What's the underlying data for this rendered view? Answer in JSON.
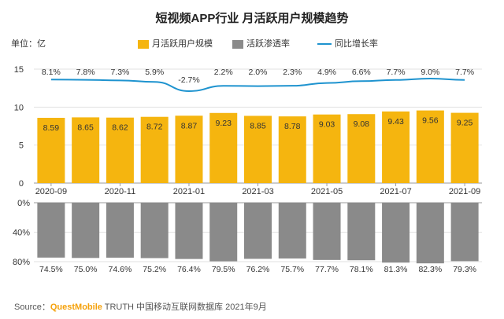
{
  "title": "短视频APP行业 月活跃用户规模趋势",
  "unit_label": "单位：亿",
  "legend": {
    "mau": "月活跃用户规模",
    "penetration": "活跃渗透率",
    "yoy": "同比增长率"
  },
  "colors": {
    "bar": "#f5b50f",
    "gray": "#8a8a8a",
    "line": "#1e93cf"
  },
  "source": {
    "prefix": "Source：",
    "brand": "QuestMobile",
    "rest": " TRUTH 中国移动互联网数据库 2021年9月"
  },
  "chart_data": [
    {
      "type": "bar",
      "title": "短视频APP行业 月活跃用户规模趋势",
      "categories": [
        "2020-09",
        "2020-10",
        "2020-11",
        "2020-12",
        "2021-01",
        "2021-02",
        "2021-03",
        "2021-04",
        "2021-05",
        "2021-06",
        "2021-07",
        "2021-08",
        "2021-09"
      ],
      "x_tick_labels": [
        "2020-09",
        "2020-11",
        "2021-01",
        "2021-03",
        "2021-05",
        "2021-07",
        "2021-09"
      ],
      "ylim": [
        0,
        15
      ],
      "y_ticks": [
        0,
        5,
        10,
        15
      ],
      "series": [
        {
          "name": "月活跃用户规模",
          "unit": "亿",
          "values": [
            8.59,
            8.65,
            8.62,
            8.72,
            8.87,
            9.23,
            8.85,
            8.78,
            9.03,
            9.08,
            9.43,
            9.56,
            9.25
          ]
        }
      ]
    },
    {
      "type": "line",
      "series": [
        {
          "name": "同比增长率",
          "unit": "%",
          "values": [
            8.1,
            7.8,
            7.3,
            5.9,
            -2.7,
            2.2,
            2.0,
            2.3,
            4.9,
            6.6,
            7.7,
            9.0,
            7.7
          ]
        }
      ]
    },
    {
      "type": "bar",
      "orientation": "downward",
      "ylim": [
        0,
        80
      ],
      "y_ticks": [
        0,
        40,
        80
      ],
      "y_tick_labels": [
        "0%",
        "40%",
        "80%"
      ],
      "series": [
        {
          "name": "活跃渗透率",
          "unit": "%",
          "values": [
            74.5,
            75.0,
            74.6,
            75.2,
            76.4,
            79.5,
            76.2,
            75.7,
            77.7,
            78.1,
            81.3,
            82.3,
            79.3
          ]
        }
      ]
    }
  ]
}
